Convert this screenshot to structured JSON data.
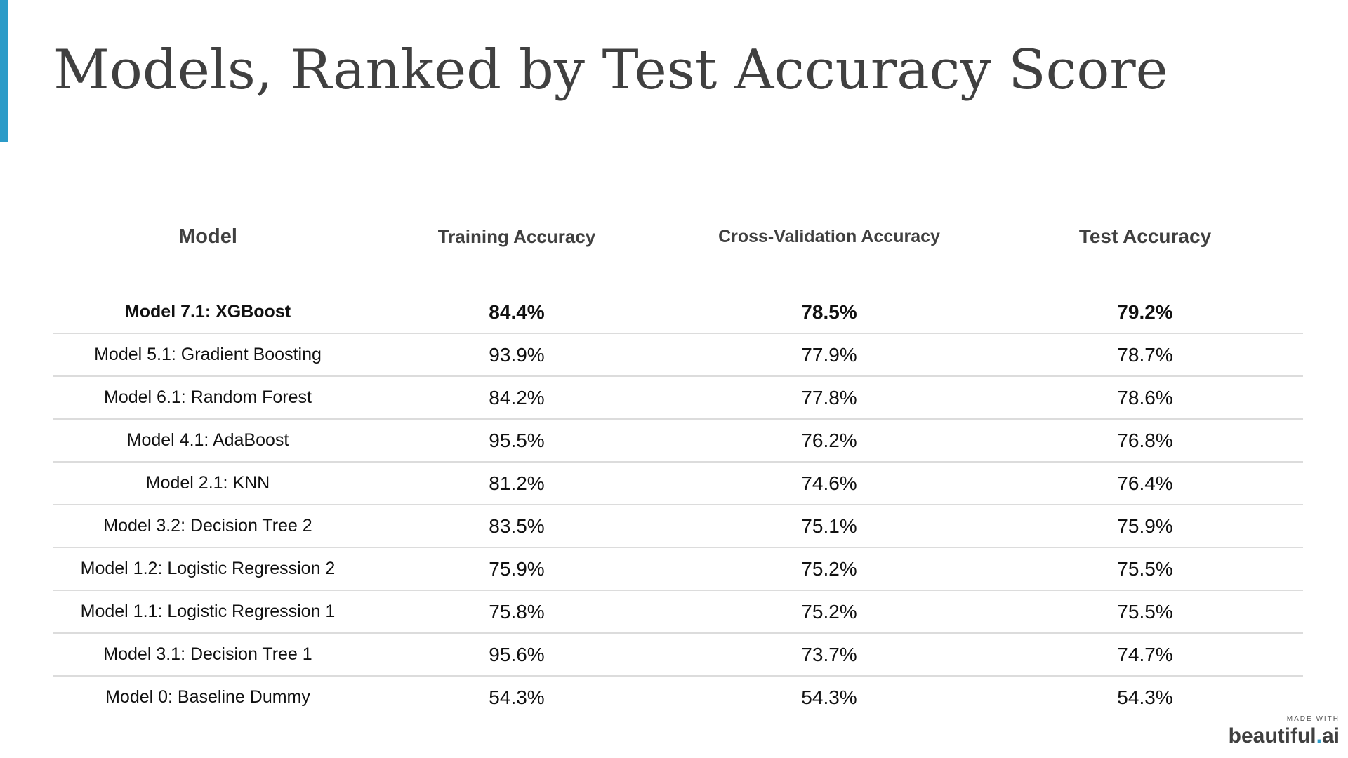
{
  "slide": {
    "title": "Models, Ranked by Test Accuracy Score",
    "accent_color": "#2b9bc8"
  },
  "table": {
    "headers": [
      "Model",
      "Training Accuracy",
      "Cross-Validation Accuracy",
      "Test Accuracy"
    ],
    "rows": [
      {
        "model": "Model 7.1: XGBoost",
        "train": "84.4%",
        "cv": "78.5%",
        "test": "79.2%"
      },
      {
        "model": "Model 5.1: Gradient Boosting",
        "train": "93.9%",
        "cv": "77.9%",
        "test": "78.7%"
      },
      {
        "model": "Model 6.1: Random Forest",
        "train": "84.2%",
        "cv": "77.8%",
        "test": "78.6%"
      },
      {
        "model": "Model 4.1: AdaBoost",
        "train": "95.5%",
        "cv": "76.2%",
        "test": "76.8%"
      },
      {
        "model": "Model 2.1: KNN",
        "train": "81.2%",
        "cv": "74.6%",
        "test": "76.4%"
      },
      {
        "model": "Model 3.2: Decision Tree 2",
        "train": "83.5%",
        "cv": "75.1%",
        "test": "75.9%"
      },
      {
        "model": "Model 1.2: Logistic Regression 2",
        "train": "75.9%",
        "cv": "75.2%",
        "test": "75.5%"
      },
      {
        "model": "Model 1.1: Logistic Regression 1",
        "train": "75.8%",
        "cv": "75.2%",
        "test": "75.5%"
      },
      {
        "model": "Model 3.1: Decision Tree 1",
        "train": "95.6%",
        "cv": "73.7%",
        "test": "74.7%"
      },
      {
        "model": "Model 0: Baseline Dummy",
        "train": "54.3%",
        "cv": "54.3%",
        "test": "54.3%"
      }
    ]
  },
  "badge": {
    "small_text": "MADE WITH",
    "brand_main": "beautiful",
    "brand_dot": ".",
    "brand_suffix": "ai"
  }
}
